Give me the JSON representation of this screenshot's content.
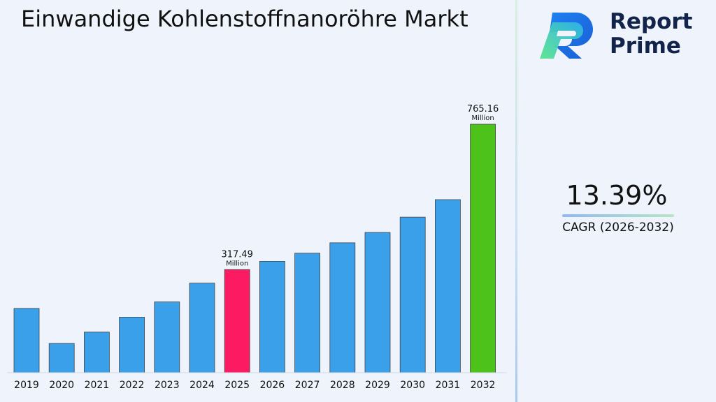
{
  "chart_data": {
    "type": "bar",
    "title": "Einwandige Kohlenstoffnanoröhre Markt",
    "categories": [
      "2019",
      "2020",
      "2021",
      "2022",
      "2023",
      "2024",
      "2025",
      "2026",
      "2027",
      "2028",
      "2029",
      "2030",
      "2031",
      "2032"
    ],
    "values": [
      198,
      90,
      125,
      171,
      218,
      276,
      317.49,
      343,
      368,
      400,
      432,
      479,
      533,
      765.16
    ],
    "bar_colors": [
      "#3aa0ea",
      "#3aa0ea",
      "#3aa0ea",
      "#3aa0ea",
      "#3aa0ea",
      "#3aa0ea",
      "#fc1a63",
      "#3aa0ea",
      "#3aa0ea",
      "#3aa0ea",
      "#3aa0ea",
      "#3aa0ea",
      "#3aa0ea",
      "#4cc21b"
    ],
    "annotations": [
      {
        "category": "2025",
        "value": "317.49",
        "unit": "Million"
      },
      {
        "category": "2032",
        "value": "765.16",
        "unit": "Million"
      }
    ],
    "xlabel": "",
    "ylabel": "",
    "grid": false,
    "legend": "none"
  },
  "logo": {
    "line1": "Report",
    "line2": "Prime",
    "icon": "report-prime-logo-icon"
  },
  "cagr": {
    "value": "13.39%",
    "label": "CAGR (2026-2032)"
  },
  "colors": {
    "background": "#eef3fc",
    "bar": "#3aa0ea",
    "highlight": "#fc1a63",
    "final": "#4cc21b"
  }
}
